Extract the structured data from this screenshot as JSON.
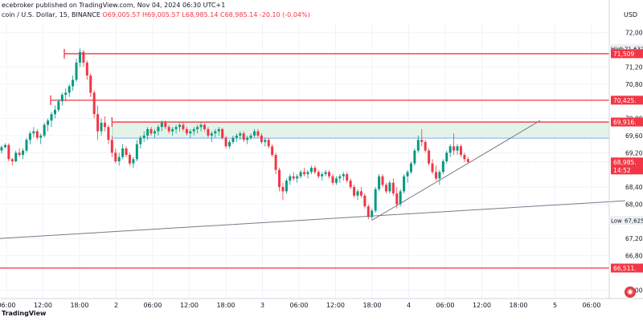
{
  "header": {
    "publisher": "ecebroker published on TradingView.com, Nov 04, 2024 06:30 UTC+1",
    "symbol": "coin / U.S. Dollar, 15, BINANCE",
    "ohlc": "O69,005.57  H69,005.57  L68,985.14  C68,985.14  -20.10 (-0.04%)"
  },
  "currency": "USD",
  "footer": {
    "logo": "TradingView"
  },
  "colors": {
    "up": "#089981",
    "down": "#f23645",
    "resistance": "#f23645",
    "support_band": "#e3f3e9",
    "band_border": "#8fd19e",
    "blue_line": "#5b9bf7",
    "trendline": "#787b86",
    "grid": "#f0f3fa"
  },
  "chart_data": {
    "type": "candlestick",
    "x_ticks": [
      "06:00",
      "12:00",
      "18:00",
      "2",
      "06:00",
      "12:00",
      "18:00",
      "3",
      "06:00",
      "12:00",
      "18:00",
      "4",
      "06:00",
      "12:00",
      "18:00",
      "5",
      "06:00"
    ],
    "y_ticks": [
      "72,000",
      "71,200",
      "70,800",
      "70,000",
      "69,600",
      "69,200",
      "68,400",
      "68,000",
      "67,200",
      "66,800",
      "66,000"
    ],
    "ylim": [
      65800,
      72200
    ],
    "price_labels": [
      {
        "text": "High",
        "kind": "tag",
        "value": 71632
      },
      {
        "text": "71,632.",
        "kind": "plain",
        "value": 71632
      },
      {
        "text": "71,509",
        "kind": "red",
        "value": 71509
      },
      {
        "text": "70,425.",
        "kind": "red",
        "value": 70425
      },
      {
        "text": "69,916.",
        "kind": "red",
        "value": 69916
      },
      {
        "text": "68,985.",
        "kind": "red",
        "value": 68985
      },
      {
        "text": "14:52",
        "kind": "red-sub",
        "value": 68840
      },
      {
        "text": "Low",
        "kind": "tag",
        "value": 67625
      },
      {
        "text": "67,625.",
        "kind": "plain",
        "value": 67625
      },
      {
        "text": "66,511.",
        "kind": "red",
        "value": 66511
      }
    ],
    "resistance_levels": [
      71509,
      70425,
      69916,
      66511
    ],
    "support_band": [
      69540,
      69916
    ],
    "blue_line": 69540,
    "candles": [
      [
        69250,
        69380,
        69180,
        69330
      ],
      [
        69330,
        69420,
        69300,
        69380
      ],
      [
        69380,
        69420,
        69000,
        69050
      ],
      [
        69050,
        69080,
        68900,
        69000
      ],
      [
        69000,
        69250,
        68980,
        69200
      ],
      [
        69200,
        69300,
        69100,
        69150
      ],
      [
        69150,
        69300,
        69050,
        69250
      ],
      [
        69250,
        69550,
        69200,
        69500
      ],
      [
        69500,
        69700,
        69400,
        69650
      ],
      [
        69650,
        69800,
        69550,
        69700
      ],
      [
        69700,
        69750,
        69500,
        69550
      ],
      [
        69550,
        69650,
        69400,
        69600
      ],
      [
        69600,
        69900,
        69550,
        69850
      ],
      [
        69850,
        70000,
        69700,
        69950
      ],
      [
        69950,
        70150,
        69800,
        70100
      ],
      [
        70100,
        70300,
        70000,
        70200
      ],
      [
        70200,
        70450,
        70150,
        70400
      ],
      [
        70400,
        70600,
        70300,
        70550
      ],
      [
        70550,
        70700,
        70400,
        70600
      ],
      [
        70600,
        70800,
        70500,
        70750
      ],
      [
        70750,
        71000,
        70650,
        70900
      ],
      [
        70900,
        71400,
        70850,
        71300
      ],
      [
        71300,
        71630,
        71200,
        71550
      ],
      [
        71550,
        71600,
        71200,
        71300
      ],
      [
        71300,
        71350,
        70900,
        71000
      ],
      [
        71000,
        71050,
        70500,
        70600
      ],
      [
        70600,
        70650,
        70000,
        70100
      ],
      [
        70100,
        70300,
        69500,
        69700
      ],
      [
        69700,
        70000,
        69600,
        69900
      ],
      [
        69900,
        70050,
        69700,
        69800
      ],
      [
        69800,
        69850,
        69400,
        69500
      ],
      [
        69500,
        69600,
        69100,
        69200
      ],
      [
        69200,
        69300,
        68950,
        69000
      ],
      [
        69000,
        69200,
        68900,
        69100
      ],
      [
        69100,
        69400,
        69050,
        69300
      ],
      [
        69300,
        69350,
        69100,
        69150
      ],
      [
        69150,
        69200,
        68900,
        68950
      ],
      [
        68950,
        69100,
        68850,
        69050
      ],
      [
        69050,
        69500,
        69000,
        69400
      ],
      [
        69400,
        69600,
        69300,
        69550
      ],
      [
        69550,
        69700,
        69450,
        69600
      ],
      [
        69600,
        69800,
        69500,
        69750
      ],
      [
        69750,
        69800,
        69600,
        69650
      ],
      [
        69650,
        69750,
        69550,
        69700
      ],
      [
        69700,
        69850,
        69600,
        69800
      ],
      [
        69800,
        69950,
        69700,
        69900
      ],
      [
        69900,
        69950,
        69750,
        69800
      ],
      [
        69800,
        69850,
        69650,
        69700
      ],
      [
        69700,
        69800,
        69600,
        69750
      ],
      [
        69750,
        69850,
        69650,
        69800
      ],
      [
        69800,
        69900,
        69700,
        69850
      ],
      [
        69850,
        69900,
        69700,
        69750
      ],
      [
        69750,
        69800,
        69600,
        69650
      ],
      [
        69650,
        69750,
        69550,
        69700
      ],
      [
        69700,
        69800,
        69600,
        69750
      ],
      [
        69750,
        69850,
        69650,
        69800
      ],
      [
        69800,
        69900,
        69700,
        69850
      ],
      [
        69850,
        69880,
        69700,
        69750
      ],
      [
        69750,
        69800,
        69550,
        69600
      ],
      [
        69600,
        69700,
        69450,
        69650
      ],
      [
        69650,
        69750,
        69550,
        69700
      ],
      [
        69700,
        69800,
        69600,
        69750
      ],
      [
        69750,
        69780,
        69500,
        69550
      ],
      [
        69550,
        69600,
        69300,
        69350
      ],
      [
        69350,
        69500,
        69300,
        69450
      ],
      [
        69450,
        69600,
        69400,
        69550
      ],
      [
        69550,
        69650,
        69450,
        69600
      ],
      [
        69600,
        69700,
        69500,
        69650
      ],
      [
        69650,
        69700,
        69450,
        69500
      ],
      [
        69500,
        69600,
        69400,
        69550
      ],
      [
        69550,
        69650,
        69500,
        69600
      ],
      [
        69600,
        69750,
        69550,
        69700
      ],
      [
        69700,
        69750,
        69550,
        69600
      ],
      [
        69600,
        69650,
        69400,
        69450
      ],
      [
        69450,
        69550,
        69350,
        69500
      ],
      [
        69500,
        69550,
        69300,
        69350
      ],
      [
        69350,
        69400,
        69100,
        69150
      ],
      [
        69150,
        69200,
        68700,
        68800
      ],
      [
        68800,
        68850,
        68300,
        68400
      ],
      [
        68400,
        68500,
        68100,
        68300
      ],
      [
        68300,
        68600,
        68250,
        68550
      ],
      [
        68550,
        68700,
        68450,
        68650
      ],
      [
        68650,
        68750,
        68550,
        68600
      ],
      [
        68600,
        68700,
        68500,
        68650
      ],
      [
        68650,
        68800,
        68600,
        68750
      ],
      [
        68750,
        68850,
        68650,
        68700
      ],
      [
        68700,
        68800,
        68600,
        68750
      ],
      [
        68750,
        68900,
        68700,
        68850
      ],
      [
        68850,
        68900,
        68700,
        68750
      ],
      [
        68750,
        68800,
        68600,
        68650
      ],
      [
        68650,
        68750,
        68550,
        68700
      ],
      [
        68700,
        68800,
        68650,
        68750
      ],
      [
        68750,
        68800,
        68600,
        68650
      ],
      [
        68650,
        68700,
        68450,
        68500
      ],
      [
        68500,
        68650,
        68450,
        68600
      ],
      [
        68600,
        68700,
        68500,
        68650
      ],
      [
        68650,
        68750,
        68550,
        68700
      ],
      [
        68700,
        68750,
        68500,
        68550
      ],
      [
        68550,
        68600,
        68350,
        68400
      ],
      [
        68400,
        68450,
        68150,
        68200
      ],
      [
        68200,
        68350,
        68100,
        68300
      ],
      [
        68300,
        68400,
        68150,
        68200
      ],
      [
        68200,
        68250,
        67900,
        67950
      ],
      [
        67950,
        68000,
        67650,
        67700
      ],
      [
        67700,
        67900,
        67625,
        67850
      ],
      [
        67850,
        68400,
        67800,
        68350
      ],
      [
        68350,
        68700,
        68300,
        68650
      ],
      [
        68650,
        68700,
        68400,
        68450
      ],
      [
        68450,
        68500,
        68250,
        68300
      ],
      [
        68300,
        68550,
        68250,
        68500
      ],
      [
        68500,
        68600,
        68200,
        68250
      ],
      [
        68250,
        68400,
        67900,
        68000
      ],
      [
        68000,
        68350,
        67950,
        68300
      ],
      [
        68300,
        68700,
        68250,
        68650
      ],
      [
        68650,
        68800,
        68500,
        68750
      ],
      [
        68750,
        69000,
        68700,
        68950
      ],
      [
        68950,
        69300,
        68900,
        69250
      ],
      [
        69250,
        69600,
        69200,
        69500
      ],
      [
        69500,
        69750,
        69350,
        69450
      ],
      [
        69450,
        69500,
        69200,
        69250
      ],
      [
        69250,
        69300,
        68900,
        68950
      ],
      [
        68950,
        69050,
        68700,
        68750
      ],
      [
        68750,
        68900,
        68550,
        68600
      ],
      [
        68600,
        68800,
        68450,
        68750
      ],
      [
        68750,
        69050,
        68700,
        69000
      ],
      [
        69000,
        69250,
        68950,
        69200
      ],
      [
        69200,
        69400,
        69100,
        69350
      ],
      [
        69350,
        69650,
        69150,
        69250
      ],
      [
        69250,
        69400,
        69150,
        69350
      ],
      [
        69350,
        69400,
        69100,
        69150
      ],
      [
        69150,
        69200,
        68980,
        69050
      ],
      [
        69050,
        69100,
        68950,
        68985
      ]
    ]
  }
}
